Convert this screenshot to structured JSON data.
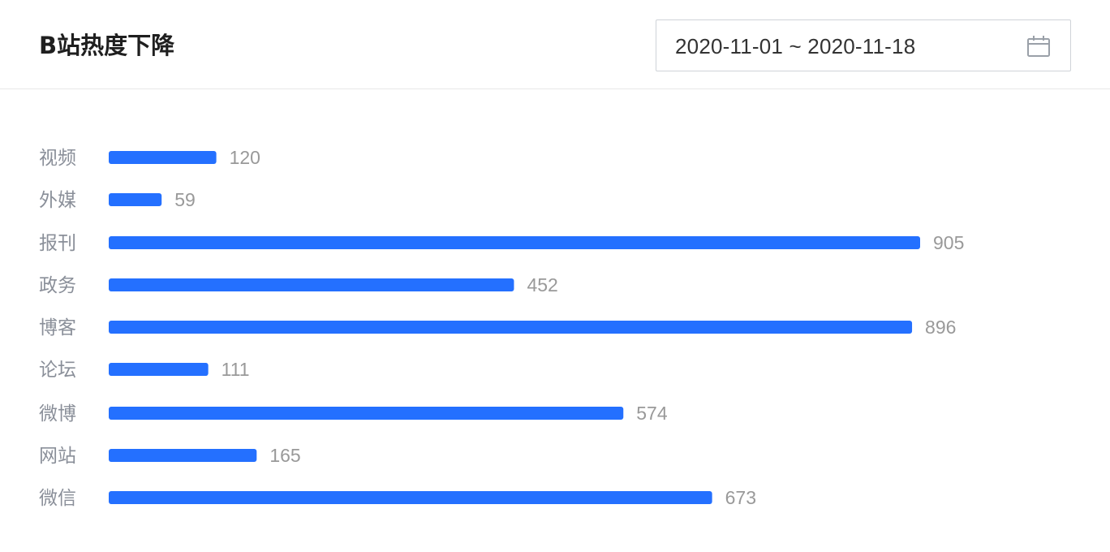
{
  "header": {
    "title": "B站热度下降",
    "date_range": "2020-11-01 ~ 2020-11-18",
    "calendar_icon": "calendar-icon"
  },
  "colors": {
    "bar": "#2470ff",
    "label": "#8a8f99",
    "value": "#999999"
  },
  "chart_data": {
    "type": "bar",
    "orientation": "horizontal",
    "title": "",
    "xlabel": "",
    "ylabel": "",
    "grid": false,
    "categories": [
      "视频",
      "外媒",
      "报刊",
      "政务",
      "博客",
      "论坛",
      "微博",
      "网站",
      "微信"
    ],
    "values": [
      120,
      59,
      905,
      452,
      896,
      111,
      574,
      165,
      673
    ],
    "value_labels": [
      "120",
      "59",
      "905",
      "452",
      "896",
      "111",
      "574",
      "165",
      "673"
    ]
  }
}
